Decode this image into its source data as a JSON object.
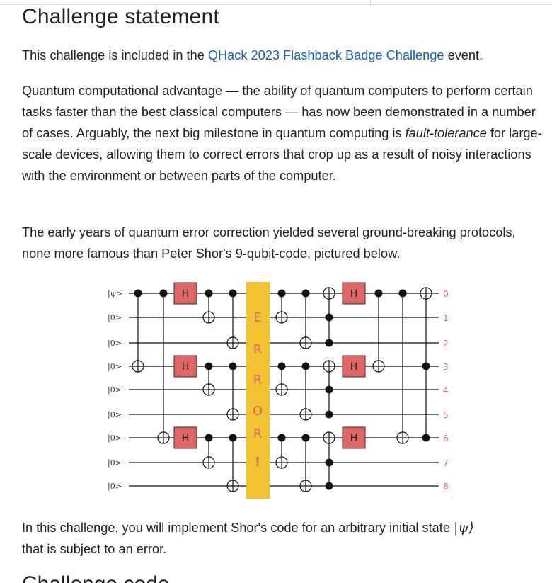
{
  "heading": "Challenge statement",
  "intro": {
    "before": "This challenge is included in the ",
    "link": "QHack 2023 Flashback Badge Challenge",
    "after": " event."
  },
  "para2": {
    "before": "Quantum computational advantage — the ability of quantum computers to perform certain tasks faster than the best classical computers — has now been demonstrated in a number of cases. Arguably, the next big milestone in quantum computing is ",
    "emph": "fault-tolerance",
    "after": " for large-scale devices, allowing them to correct errors that crop up as a result of noisy interactions with the environment or between parts of the computer."
  },
  "para3": "The early years of quantum error correction yielded several ground-breaking protocols, none more famous than Peter Shor's 9-qubit-code, pictured below.",
  "para4": {
    "before": "In this challenge, you will implement Shor's code for an arbitrary initial state ",
    "psi": "|ψ⟩",
    "after": " that is subject to an error."
  },
  "next_heading": "Challenge code",
  "circuit": {
    "input_labels": [
      "|ψ>",
      "|0>",
      "|0>",
      "|0>",
      "|0>",
      "|0>",
      "|0>",
      "|0>",
      "|0>"
    ],
    "qubit_numbers": [
      "0",
      "1",
      "2",
      "3",
      "4",
      "5",
      "6",
      "7",
      "8"
    ],
    "gate_label": "H",
    "error_letters": [
      "E",
      "R",
      "R",
      "O",
      "R",
      "!"
    ],
    "colors": {
      "gate_fill": "#e06666",
      "error_band": "#f1c232",
      "error_text": "#e06666",
      "qubit_numbers": "#e06666",
      "wire": "#111111"
    }
  }
}
